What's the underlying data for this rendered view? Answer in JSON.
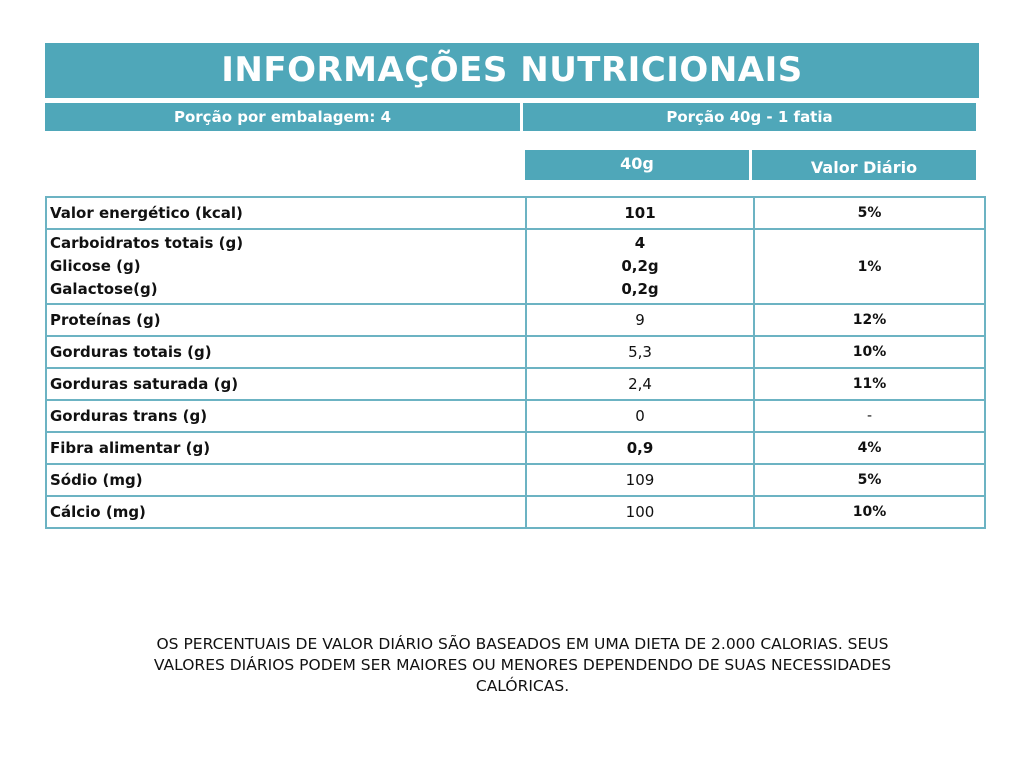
{
  "header": {
    "title": "INFORMAÇÕES NUTRICIONAIS",
    "servings_per_package": "Porção por embalagem: 4",
    "serving_size": "Porção 40g - 1 fatia"
  },
  "columns": {
    "amount": "40g",
    "daily_value": "Valor Diário"
  },
  "rows": [
    {
      "label": "Valor energético (kcal)",
      "amount": "101",
      "dv": "5%"
    },
    {
      "labels": [
        "Carboidratos totais (g)",
        "Glicose (g)",
        "Galactose(g)"
      ],
      "amounts": [
        "4",
        "0,2g",
        "0,2g"
      ],
      "dv": "1%"
    },
    {
      "label": "Proteínas (g)",
      "amount": "9",
      "dv": "12%"
    },
    {
      "label": "Gorduras totais (g)",
      "amount": "5,3",
      "dv": "10%"
    },
    {
      "label": "Gorduras saturada (g)",
      "amount": "2,4",
      "dv": "11%"
    },
    {
      "label": "Gorduras trans (g)",
      "amount": "0",
      "dv": "-"
    },
    {
      "label": "Fibra alimentar (g)",
      "amount": "0,9",
      "dv": "4%"
    },
    {
      "label": "Sódio (mg)",
      "amount": "109",
      "dv": "5%"
    },
    {
      "label": "Cálcio (mg)",
      "amount": "100",
      "dv": "10%"
    }
  ],
  "footnote": {
    "line1": "OS PERCENTUAIS DE VALOR DIÁRIO SÃO BASEADOS EM UMA DIETA DE 2.000 CALORIAS. SEUS",
    "line2": "VALORES DIÁRIOS PODEM SER MAIORES OU MENORES DEPENDENDO DE SUAS NECESSIDADES",
    "line3": "CALÓRICAS."
  },
  "colors": {
    "accent": "#4fa7b9",
    "border": "#6cb3c3"
  }
}
